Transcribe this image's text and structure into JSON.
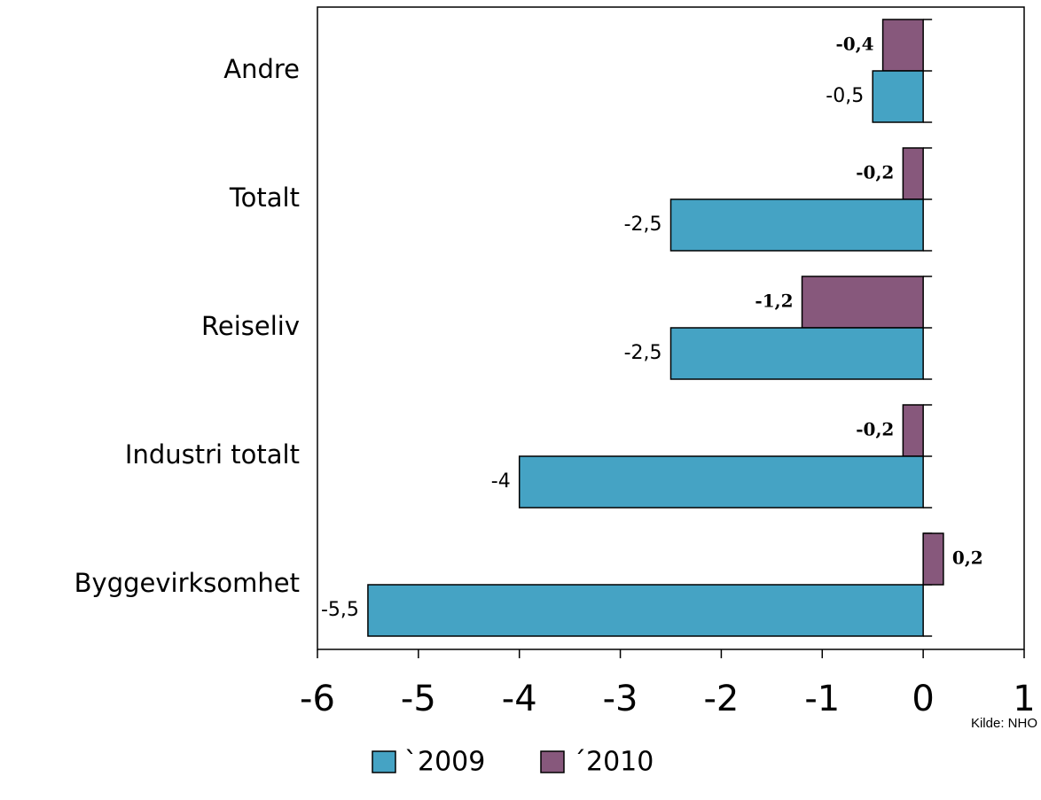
{
  "chart_data": {
    "type": "bar",
    "orientation": "horizontal",
    "categories": [
      "Andre",
      "Totalt",
      "Reiseliv",
      "Industri totalt",
      "Byggevirksomhet"
    ],
    "series": [
      {
        "name": "`2009",
        "color": "#45a3c4",
        "values": [
          -0.5,
          -2.5,
          -2.5,
          -4,
          -5.5
        ],
        "value_labels": [
          "-0,5",
          "-2,5",
          "-2,5",
          "-4",
          "-5,5"
        ]
      },
      {
        "name": "´2010",
        "color": "#87587c",
        "values": [
          -0.4,
          -0.2,
          -1.2,
          -0.2,
          0.2
        ],
        "value_labels": [
          "-0,4",
          "-0,2",
          "-1,2",
          "-0,2",
          "0,2"
        ]
      }
    ],
    "xlim": [
      -6,
      1
    ],
    "xticks": [
      -6,
      -5,
      -4,
      -3,
      -2,
      -1,
      0,
      1
    ],
    "source": "Kilde: NHO"
  }
}
